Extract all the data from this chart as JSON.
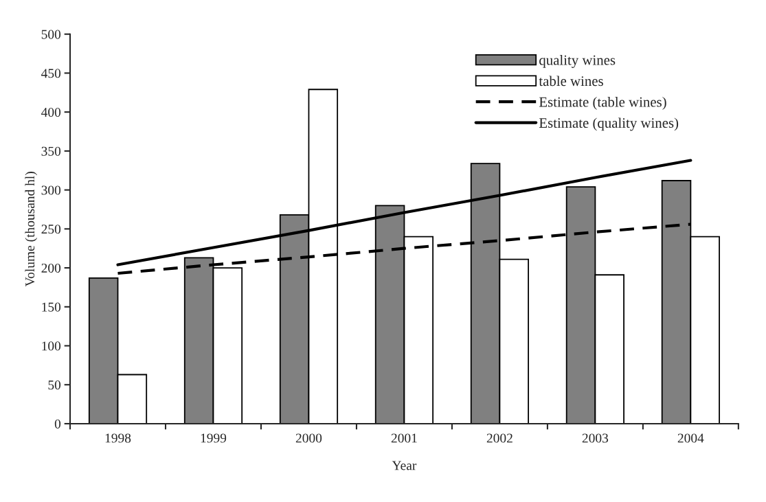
{
  "chart_data": {
    "type": "bar",
    "xlabel": "Year",
    "ylabel": "Volume (thousand hl)",
    "categories": [
      "1998",
      "1999",
      "2000",
      "2001",
      "2002",
      "2003",
      "2004"
    ],
    "series": [
      {
        "name": "quality wines",
        "color": "#808080",
        "values": [
          187,
          213,
          268,
          280,
          334,
          304,
          312
        ]
      },
      {
        "name": "table wines",
        "color": "#ffffff",
        "values": [
          63,
          200,
          429,
          240,
          211,
          191,
          240
        ]
      },
      {
        "name": "Estimate (table wines)",
        "type": "line",
        "line_style": "dashed",
        "color": "#000000",
        "values": [
          193,
          204,
          214,
          225,
          235,
          246,
          256
        ]
      },
      {
        "name": "Estimate (quality wines)",
        "type": "line",
        "line_style": "solid",
        "color": "#000000",
        "values": [
          204,
          226,
          248,
          271,
          293,
          316,
          338
        ]
      }
    ],
    "ylim": [
      0,
      500
    ],
    "yticks": [
      0,
      50,
      100,
      150,
      200,
      250,
      300,
      350,
      400,
      450,
      500
    ],
    "grid": false,
    "legend": "top right"
  }
}
